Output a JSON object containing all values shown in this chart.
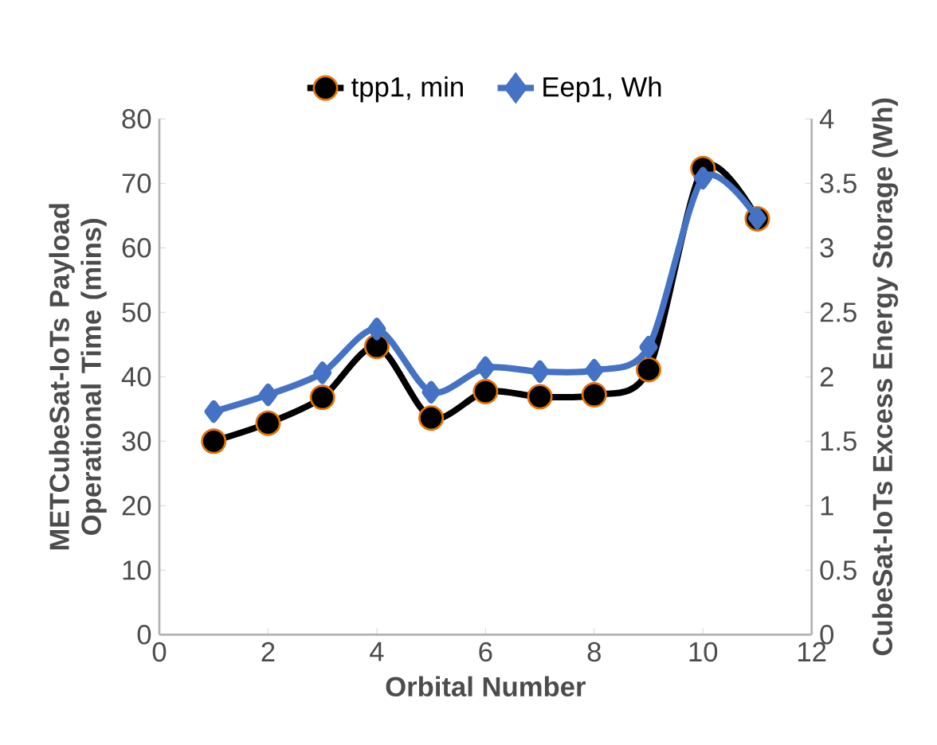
{
  "chart_data": {
    "type": "line",
    "xlabel": "Orbital Number",
    "ylabel": "METCubeSat-IoTs Payload Operational Time (mins)",
    "y2label": "CubeSat-IoTs Excess Energy Storage (Wh)",
    "x": [
      1,
      2,
      3,
      4,
      5,
      6,
      7,
      8,
      9,
      10,
      11
    ],
    "series": [
      {
        "name": "tpp1, min",
        "color": "#000000",
        "marker": "circle",
        "values": [
          30.0,
          32.8,
          36.8,
          44.7,
          33.6,
          37.7,
          36.9,
          37.2,
          41.1,
          72.3,
          64.5
        ]
      },
      {
        "name": "Eep1, Wh",
        "color": "#4472c4",
        "marker": "diamond",
        "axis": "y2",
        "values": [
          1.73,
          1.86,
          2.03,
          2.37,
          1.88,
          2.07,
          2.04,
          2.05,
          2.23,
          3.54,
          3.23
        ]
      }
    ],
    "xlim": [
      0,
      12
    ],
    "xticks": [
      0,
      2,
      4,
      6,
      8,
      10,
      12
    ],
    "ylim": [
      0,
      80
    ],
    "yticks": [
      0,
      10,
      20,
      30,
      40,
      50,
      60,
      70,
      80
    ],
    "y2lim": [
      0,
      4
    ],
    "y2ticks": [
      0,
      0.5,
      1,
      1.5,
      2,
      2.5,
      3,
      3.5,
      4
    ],
    "legend": "top",
    "grid": false,
    "line_style": "solid"
  }
}
